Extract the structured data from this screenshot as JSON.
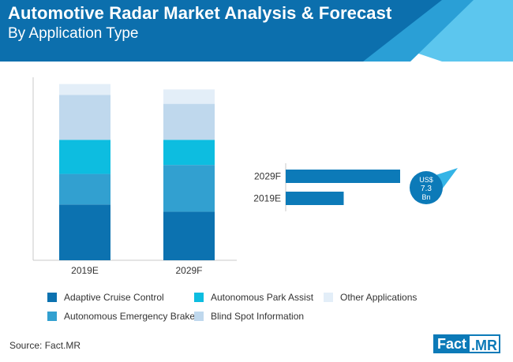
{
  "header": {
    "title": "Automotive Radar Market Analysis & Forecast",
    "subtitle": "By Application Type"
  },
  "colors": {
    "header_dark": "#0c6fad",
    "header_mid": "#2a9fd6",
    "header_light": "#5cc6ee",
    "bar_value": "#0c7ab8",
    "bubble": "#0c7ab8"
  },
  "chart_data": [
    {
      "type": "bar",
      "stacked": true,
      "categories": [
        "2019E",
        "2029F"
      ],
      "unit": "share of total (%)",
      "ylim": [
        0,
        100
      ],
      "series": [
        {
          "name": "Adaptive Cruise Control",
          "color": "#0c72b0",
          "values": [
            31,
            27
          ]
        },
        {
          "name": "Autonomous Emergency Brake",
          "color": "#32a0d0",
          "values": [
            17,
            26
          ]
        },
        {
          "name": "Autonomous Park Assist",
          "color": "#0dbde0",
          "values": [
            19,
            14
          ]
        },
        {
          "name": "Blind Spot Information",
          "color": "#bfd8ed",
          "values": [
            25,
            20
          ]
        },
        {
          "name": "Other Applications",
          "color": "#e3eef8",
          "values": [
            6,
            8
          ]
        }
      ]
    },
    {
      "type": "bar",
      "orientation": "horizontal",
      "categories": [
        "2029F",
        "2019E"
      ],
      "values": [
        7.3,
        3.7
      ],
      "xlim": [
        0,
        7.3
      ],
      "callout": {
        "line1": "US$",
        "line2": "7.3",
        "line3": "Bn"
      }
    }
  ],
  "footer": {
    "source": "Source: Fact.MR",
    "logo_left": "Fact",
    "logo_right": ".MR"
  }
}
